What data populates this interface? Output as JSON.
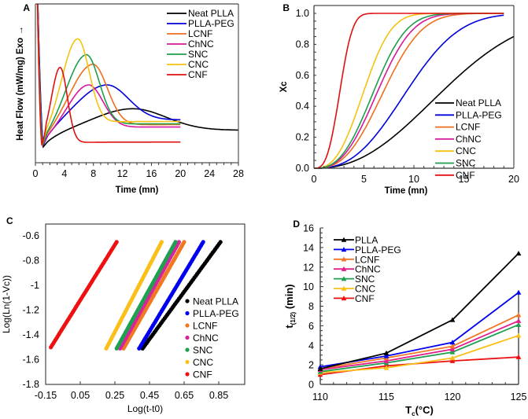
{
  "chart_data": [
    {
      "id": "A",
      "type": "line",
      "panel_label": "A",
      "title": "",
      "xlabel": "Time (mn)",
      "ylabel": "Heat Flow (mW/mg) Exo →",
      "xlim": [
        0,
        28
      ],
      "xticks": [
        0,
        4,
        8,
        12,
        16,
        20,
        24,
        28
      ],
      "ylim": [
        0,
        1
      ],
      "y_units": "relative (no tick labels shown)",
      "legend_position": "top-right",
      "grid": false,
      "series": [
        {
          "name": "Neat PLLA",
          "color": "#000000",
          "t_end": 28,
          "min_t": 1.1,
          "min_y": 0.1,
          "peak_t": 13.4,
          "peak_y": 0.34,
          "rise_width": 5.2,
          "fall_width": 4.6,
          "baseline_end": 0.205
        },
        {
          "name": "PLLA-PEG",
          "color": "#0000dd",
          "t_end": 20,
          "min_t": 1.1,
          "min_y": 0.11,
          "peak_t": 9.8,
          "peak_y": 0.49,
          "rise_width": 3.9,
          "fall_width": 3.0,
          "baseline_end": 0.27
        },
        {
          "name": "LCNF",
          "color": "#ee6f1e",
          "t_end": 20,
          "min_t": 1.0,
          "min_y": 0.11,
          "peak_t": 7.9,
          "peak_y": 0.62,
          "rise_width": 3.0,
          "fall_width": 2.0,
          "baseline_end": 0.24
        },
        {
          "name": "ChNC",
          "color": "#d6189c",
          "t_end": 20,
          "min_t": 1.0,
          "min_y": 0.11,
          "peak_t": 7.3,
          "peak_y": 0.49,
          "rise_width": 2.7,
          "fall_width": 2.0,
          "baseline_end": 0.225
        },
        {
          "name": "SNC",
          "color": "#1e9e4a",
          "t_end": 20,
          "min_t": 1.0,
          "min_y": 0.11,
          "peak_t": 7.0,
          "peak_y": 0.68,
          "rise_width": 2.6,
          "fall_width": 1.8,
          "baseline_end": 0.245
        },
        {
          "name": "CNC",
          "color": "#f5c210",
          "t_end": 20,
          "min_t": 0.9,
          "min_y": 0.11,
          "peak_t": 5.8,
          "peak_y": 0.78,
          "rise_width": 2.1,
          "fall_width": 1.6,
          "baseline_end": 0.26
        },
        {
          "name": "CNF",
          "color": "#e01010",
          "t_end": 20,
          "min_t": 0.9,
          "min_y": 0.11,
          "peak_t": 3.4,
          "peak_y": 0.6,
          "rise_width": 1.2,
          "fall_width": 1.0,
          "baseline_end": 0.13
        }
      ]
    },
    {
      "id": "B",
      "type": "line",
      "panel_label": "B",
      "title": "",
      "xlabel": "Time (mn)",
      "ylabel": "Xc",
      "xlim": [
        0,
        20
      ],
      "xticks": [
        0,
        5,
        10,
        15,
        20
      ],
      "ylim": [
        0,
        1.05
      ],
      "yticks": [
        "0.0",
        "0.2",
        "0.4",
        "0.6",
        "0.8",
        "1.0"
      ],
      "legend_position": "bottom-right",
      "grid": false,
      "series": [
        {
          "name": "Neat PLLA",
          "color": "#000000",
          "t_half": 12.9,
          "avrami_n": 2.3,
          "t_end": 20
        },
        {
          "name": "PLLA-PEG",
          "color": "#0000dd",
          "t_half": 9.3,
          "avrami_n": 2.6,
          "t_end": 19
        },
        {
          "name": "LCNF",
          "color": "#ee6f1e",
          "t_half": 7.0,
          "avrami_n": 2.7,
          "t_end": 19
        },
        {
          "name": "ChNC",
          "color": "#d6189c",
          "t_half": 6.4,
          "avrami_n": 2.7,
          "t_end": 19
        },
        {
          "name": "CNC",
          "color": "#f5c210",
          "t_half": 5.0,
          "avrami_n": 2.7,
          "t_end": 19
        },
        {
          "name": "SNC",
          "color": "#1e9e4a",
          "t_half": 6.0,
          "avrami_n": 2.7,
          "t_end": 19
        },
        {
          "name": "CNF",
          "color": "#e01010",
          "t_half": 2.6,
          "avrami_n": 3.0,
          "t_end": 19
        }
      ]
    },
    {
      "id": "C",
      "type": "scatter",
      "panel_label": "C",
      "title": "",
      "xlabel": "Log(t-t0)",
      "ylabel": "Log(Ln(1-Vc))",
      "xlim": [
        -0.15,
        1.0
      ],
      "xticks": [
        "-0.15",
        "0.05",
        "0.25",
        "0.45",
        "0.65",
        "0.85"
      ],
      "ylim": [
        -1.8,
        -0.5
      ],
      "yticks": [
        "-0.6",
        "-0.8",
        "-1",
        "-1.2",
        "-1.4",
        "-1.6",
        "-1.8"
      ],
      "legend_position": "bottom-right",
      "grid": false,
      "series": [
        {
          "name": "Neat PLLA",
          "color": "#000000",
          "x_start": 0.41,
          "y_start": -1.51,
          "x_end": 0.86,
          "y_end": -0.65
        },
        {
          "name": "PLLA-PEG",
          "color": "#0000ee",
          "x_start": 0.39,
          "y_start": -1.51,
          "x_end": 0.76,
          "y_end": -0.65
        },
        {
          "name": "LCNF",
          "color": "#f07820",
          "x_start": 0.3,
          "y_start": -1.51,
          "x_end": 0.65,
          "y_end": -0.65
        },
        {
          "name": "ChNC",
          "color": "#d6249c",
          "x_start": 0.28,
          "y_start": -1.51,
          "x_end": 0.62,
          "y_end": -0.65
        },
        {
          "name": "SNC",
          "color": "#1ea050",
          "x_start": 0.26,
          "y_start": -1.51,
          "x_end": 0.6,
          "y_end": -0.65
        },
        {
          "name": "CNC",
          "color": "#fbbf1a",
          "x_start": 0.2,
          "y_start": -1.51,
          "x_end": 0.52,
          "y_end": -0.65
        },
        {
          "name": "CNF",
          "color": "#ee1111",
          "x_start": -0.12,
          "y_start": -1.5,
          "x_end": 0.26,
          "y_end": -0.65
        }
      ]
    },
    {
      "id": "D",
      "type": "line",
      "panel_label": "D",
      "title": "",
      "xlabel": "T_c(°C)",
      "xlabel_main": "T",
      "xlabel_sub": "c",
      "xlabel_rest": "(°C)",
      "ylabel": "t_(1/2) (min)",
      "ylabel_main": "t",
      "ylabel_sub": "(1/2)",
      "ylabel_rest": " (min)",
      "x": [
        110,
        115,
        120,
        125
      ],
      "xticks": [
        "110",
        "115",
        "120",
        "125"
      ],
      "xlim": [
        110,
        125
      ],
      "ylim": [
        0,
        16
      ],
      "yticks": [
        "0",
        "2",
        "4",
        "6",
        "8",
        "10",
        "12",
        "14",
        "16"
      ],
      "legend_position": "top-left",
      "grid": false,
      "marker": "triangle",
      "series": [
        {
          "name": "PLLA",
          "color": "#000000",
          "values": [
            1.6,
            3.2,
            6.6,
            13.4
          ]
        },
        {
          "name": "PLLA-PEG",
          "color": "#0000ee",
          "values": [
            1.8,
            2.9,
            4.3,
            9.4
          ]
        },
        {
          "name": "LCNF",
          "color": "#f07828",
          "values": [
            1.6,
            2.7,
            3.9,
            7.1
          ]
        },
        {
          "name": "ChNC",
          "color": "#e0208c",
          "values": [
            1.5,
            2.4,
            3.6,
            6.5
          ]
        },
        {
          "name": "SNC",
          "color": "#1ea050",
          "values": [
            1.3,
            2.2,
            3.3,
            6.1
          ]
        },
        {
          "name": "CNC",
          "color": "#fbbf1a",
          "values": [
            1.2,
            1.7,
            2.7,
            5.0
          ]
        },
        {
          "name": "CNF",
          "color": "#ee1111",
          "values": [
            1.0,
            1.9,
            2.4,
            2.8
          ]
        }
      ]
    }
  ]
}
